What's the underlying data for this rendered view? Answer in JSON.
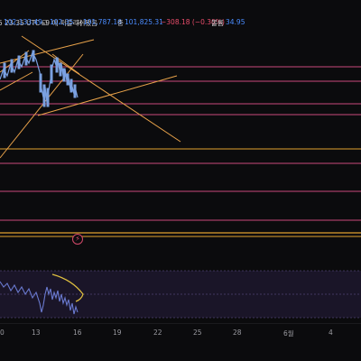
{
  "header": {
    "time_info": "5 23:35 UTC+9 에 퍼블리쉬됐음",
    "open_prefix": "102,133.49",
    "high_label": "고",
    "high_value": "102,35",
    "low_label": "저",
    "low_value": "101,787.16",
    "close_label": "종",
    "close_value": "101,825.31",
    "change": "−308.18 (−0.30%)",
    "volume_label": "볼륨",
    "volume_value": "34.95"
  },
  "axis": {
    "ticks": [
      "0",
      "13",
      "16",
      "19",
      "22",
      "25",
      "28",
      "6월",
      "4"
    ]
  },
  "colors": {
    "trendline": "#e8a24a",
    "horizontal_pink": "#c84a7a",
    "horizontal_orange": "#e0a030",
    "candles": "#7aa0e0",
    "oscillator": "#6a7ad0",
    "oscillator_band": "#2a2040"
  },
  "icons": {
    "alert": "lightning-alert-icon"
  }
}
